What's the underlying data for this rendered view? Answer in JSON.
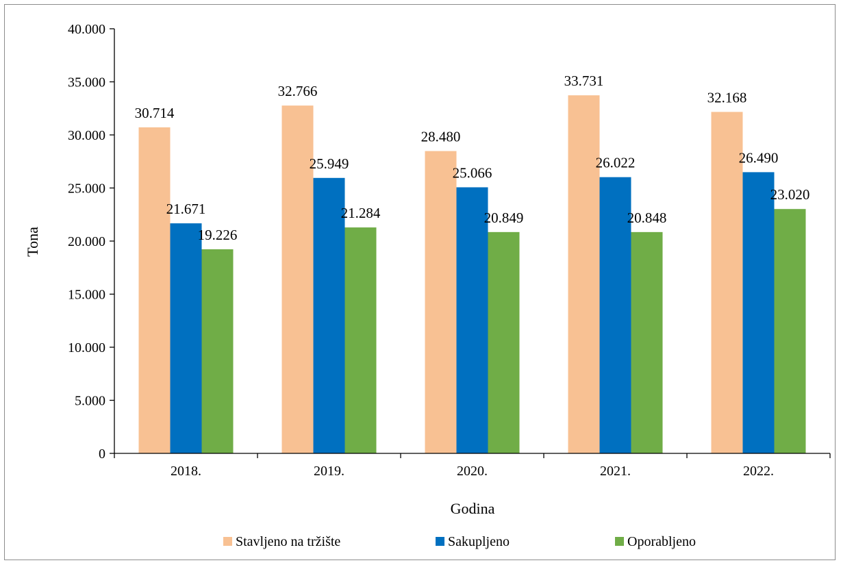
{
  "chart_data": {
    "type": "bar",
    "categories": [
      "2018.",
      "2019.",
      "2020.",
      "2021.",
      "2022."
    ],
    "series": [
      {
        "name": "Stavljeno na tržište",
        "values": [
          30714,
          32766,
          28480,
          33731,
          32168
        ],
        "labels": [
          "30.714",
          "32.766",
          "28.480",
          "33.731",
          "32.168"
        ],
        "color": "#F8C193"
      },
      {
        "name": "Sakupljeno",
        "values": [
          21671,
          25949,
          25066,
          26022,
          26490
        ],
        "labels": [
          "21.671",
          "25.949",
          "25.066",
          "26.022",
          "26.490"
        ],
        "color": "#0070C0"
      },
      {
        "name": "Oporabljeno",
        "values": [
          19226,
          21284,
          20849,
          20848,
          23020
        ],
        "labels": [
          "19.226",
          "21.284",
          "20.849",
          "20.848",
          "23.020"
        ],
        "color": "#70AD47"
      }
    ],
    "xlabel": "Godina",
    "ylabel": "Tona",
    "ylim": [
      0,
      40000
    ],
    "yticks": [
      0,
      5000,
      10000,
      15000,
      20000,
      25000,
      30000,
      35000,
      40000
    ],
    "ytick_labels": [
      "0",
      "5.000",
      "10.000",
      "15.000",
      "20.000",
      "25.000",
      "30.000",
      "35.000",
      "40.000"
    ],
    "grid": false,
    "legend_position": "bottom"
  }
}
